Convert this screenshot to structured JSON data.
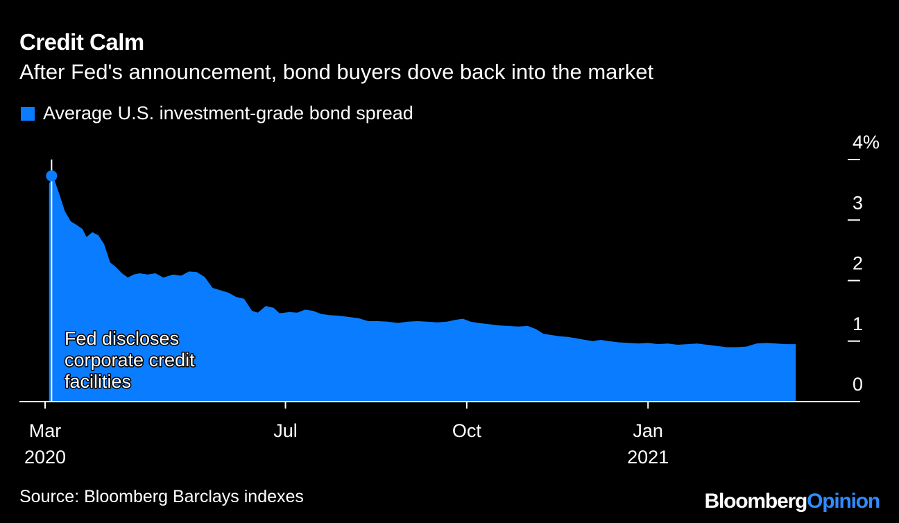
{
  "title": "Credit Calm",
  "subtitle": "After Fed's announcement, bond buyers dove back into the market",
  "source": "Source: Bloomberg Barclays indexes",
  "brand": {
    "part1": "Bloomberg",
    "part2": "Opinion"
  },
  "colors": {
    "series": "#0a7cff",
    "background": "#000000",
    "text": "#ffffff",
    "brand_accent": "#2f8cff"
  },
  "chart_data": {
    "type": "area",
    "title": "Credit Calm",
    "subtitle": "After Fed's announcement, bond buyers dove back into the market",
    "xlabel": "",
    "ylabel": "",
    "ylim": [
      0,
      4
    ],
    "y_unit": "%",
    "y_ticks": [
      "4%",
      "3",
      "2",
      "1",
      "0"
    ],
    "y_tick_values": [
      4,
      3,
      2,
      1,
      0
    ],
    "y_axis_side": "right",
    "grid": false,
    "legend_position": "top-left",
    "x_ticks": [
      {
        "date": "2020-03-01",
        "label": "Mar",
        "sublabel": "2020"
      },
      {
        "date": "2020-07-01",
        "label": "Jul",
        "sublabel": ""
      },
      {
        "date": "2020-10-01",
        "label": "Oct",
        "sublabel": ""
      },
      {
        "date": "2021-01-01",
        "label": "Jan",
        "sublabel": "2021"
      }
    ],
    "x_range": [
      "2020-03-01",
      "2021-03-31"
    ],
    "series": [
      {
        "name": "Average U.S. investment-grade bond spread",
        "points": [
          [
            "2020-03-01",
            0
          ],
          [
            "2020-03-03",
            0
          ],
          [
            "2020-03-03",
            3.6
          ],
          [
            "2020-03-05",
            3.73
          ],
          [
            "2020-03-08",
            3.45
          ],
          [
            "2020-03-11",
            3.15
          ],
          [
            "2020-03-14",
            2.98
          ],
          [
            "2020-03-17",
            2.92
          ],
          [
            "2020-03-20",
            2.85
          ],
          [
            "2020-03-22",
            2.72
          ],
          [
            "2020-03-25",
            2.8
          ],
          [
            "2020-03-28",
            2.75
          ],
          [
            "2020-03-31",
            2.6
          ],
          [
            "2020-04-03",
            2.3
          ],
          [
            "2020-04-06",
            2.22
          ],
          [
            "2020-04-09",
            2.12
          ],
          [
            "2020-04-12",
            2.05
          ],
          [
            "2020-04-15",
            2.1
          ],
          [
            "2020-04-18",
            2.12
          ],
          [
            "2020-04-22",
            2.1
          ],
          [
            "2020-04-26",
            2.12
          ],
          [
            "2020-04-30",
            2.05
          ],
          [
            "2020-05-05",
            2.1
          ],
          [
            "2020-05-09",
            2.08
          ],
          [
            "2020-05-13",
            2.15
          ],
          [
            "2020-05-17",
            2.14
          ],
          [
            "2020-05-21",
            2.06
          ],
          [
            "2020-05-25",
            1.88
          ],
          [
            "2020-05-29",
            1.84
          ],
          [
            "2020-06-02",
            1.8
          ],
          [
            "2020-06-06",
            1.73
          ],
          [
            "2020-06-10",
            1.7
          ],
          [
            "2020-06-14",
            1.5
          ],
          [
            "2020-06-17",
            1.47
          ],
          [
            "2020-06-21",
            1.58
          ],
          [
            "2020-06-25",
            1.55
          ],
          [
            "2020-06-28",
            1.46
          ],
          [
            "2020-07-03",
            1.48
          ],
          [
            "2020-07-07",
            1.47
          ],
          [
            "2020-07-11",
            1.52
          ],
          [
            "2020-07-15",
            1.5
          ],
          [
            "2020-07-19",
            1.45
          ],
          [
            "2020-07-23",
            1.43
          ],
          [
            "2020-07-28",
            1.42
          ],
          [
            "2020-08-02",
            1.4
          ],
          [
            "2020-08-07",
            1.38
          ],
          [
            "2020-08-12",
            1.33
          ],
          [
            "2020-08-17",
            1.33
          ],
          [
            "2020-08-22",
            1.32
          ],
          [
            "2020-08-27",
            1.3
          ],
          [
            "2020-09-01",
            1.32
          ],
          [
            "2020-09-06",
            1.33
          ],
          [
            "2020-09-11",
            1.32
          ],
          [
            "2020-09-16",
            1.31
          ],
          [
            "2020-09-21",
            1.32
          ],
          [
            "2020-09-25",
            1.35
          ],
          [
            "2020-09-29",
            1.37
          ],
          [
            "2020-10-03",
            1.32
          ],
          [
            "2020-10-07",
            1.3
          ],
          [
            "2020-10-12",
            1.28
          ],
          [
            "2020-10-17",
            1.26
          ],
          [
            "2020-10-22",
            1.25
          ],
          [
            "2020-10-27",
            1.24
          ],
          [
            "2020-11-01",
            1.25
          ],
          [
            "2020-11-05",
            1.2
          ],
          [
            "2020-11-09",
            1.12
          ],
          [
            "2020-11-13",
            1.1
          ],
          [
            "2020-11-17",
            1.08
          ],
          [
            "2020-11-21",
            1.07
          ],
          [
            "2020-11-25",
            1.05
          ],
          [
            "2020-11-30",
            1.02
          ],
          [
            "2020-12-04",
            1.0
          ],
          [
            "2020-12-08",
            1.02
          ],
          [
            "2020-12-12",
            1.0
          ],
          [
            "2020-12-17",
            0.98
          ],
          [
            "2020-12-22",
            0.97
          ],
          [
            "2020-12-27",
            0.96
          ],
          [
            "2021-01-01",
            0.97
          ],
          [
            "2021-01-06",
            0.95
          ],
          [
            "2021-01-11",
            0.96
          ],
          [
            "2021-01-16",
            0.94
          ],
          [
            "2021-01-21",
            0.95
          ],
          [
            "2021-01-26",
            0.96
          ],
          [
            "2021-01-31",
            0.94
          ],
          [
            "2021-02-05",
            0.92
          ],
          [
            "2021-02-10",
            0.9
          ],
          [
            "2021-02-15",
            0.9
          ],
          [
            "2021-02-20",
            0.91
          ],
          [
            "2021-02-25",
            0.96
          ],
          [
            "2021-03-02",
            0.97
          ],
          [
            "2021-03-07",
            0.96
          ],
          [
            "2021-03-12",
            0.95
          ],
          [
            "2021-03-17",
            0.95
          ]
        ]
      }
    ],
    "annotations": [
      {
        "date": "2020-03-05",
        "value": 3.73,
        "text": "Fed discloses\ncorporate credit\nfacilities",
        "lines": [
          "Fed discloses",
          "corporate credit",
          "facilities"
        ]
      }
    ]
  }
}
